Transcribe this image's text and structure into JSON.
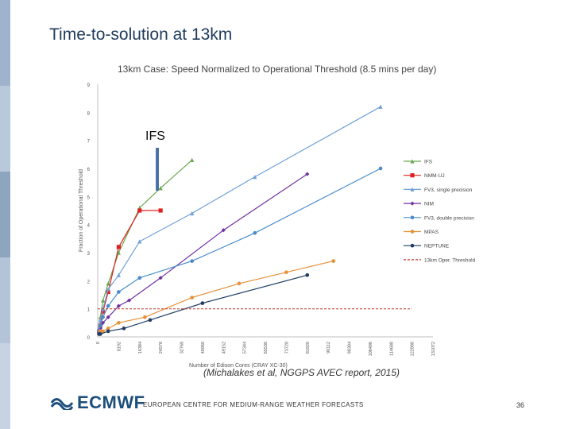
{
  "slide": {
    "title": "Time-to-solution at 13km",
    "annotation": "IFS",
    "citation": "(Michalakes et al, NGGPS AVEC report, 2015)",
    "footer_org": "EUROPEAN CENTRE FOR MEDIUM-RANGE WEATHER FORECASTS",
    "logo_text": "ECMWF",
    "page_number": "36"
  },
  "colors": {
    "title": "#1f3b5c",
    "logo": "#1d4f7c",
    "annotation_bar": "#4a73a8"
  },
  "chart_data": {
    "type": "line",
    "title": "13km Case: Speed Normalized to Operational Threshold (8.5 mins per day)",
    "xlabel": "Number of Edison Cores (CRAY XC-30)",
    "ylabel": "Fraction of Operational Threshold",
    "x_ticks": [
      "0",
      "8192",
      "16384",
      "24576",
      "32768",
      "40960",
      "49152",
      "57344",
      "65536",
      "73728",
      "81920",
      "90112",
      "98304",
      "106496",
      "114688",
      "122880",
      "131072"
    ],
    "y_ticks": [
      "0",
      "1",
      "2",
      "3",
      "4",
      "5",
      "6",
      "7",
      "8",
      "9"
    ],
    "xlim": [
      0,
      131072
    ],
    "ylim": [
      0,
      9
    ],
    "grid": false,
    "legend_position": "right",
    "series": [
      {
        "name": "IFS",
        "color": "#6aa84f",
        "marker": "triangle",
        "x": [
          512,
          1024,
          2048,
          4096,
          8192,
          16384,
          24576,
          36864
        ],
        "y": [
          0.3,
          0.7,
          1.3,
          1.9,
          3.0,
          4.6,
          5.3,
          6.3
        ]
      },
      {
        "name": "NMM-UJ",
        "color": "#e02020",
        "marker": "square",
        "x": [
          512,
          1024,
          2048,
          4096,
          8192,
          16384,
          24576
        ],
        "y": [
          0.2,
          0.4,
          0.9,
          1.6,
          3.2,
          4.5,
          4.5
        ]
      },
      {
        "name": "FV3, single precision",
        "color": "#6fa0d8",
        "marker": "triangle",
        "x": [
          512,
          1024,
          2048,
          4096,
          8192,
          16384,
          36864,
          61440,
          110592
        ],
        "y": [
          0.3,
          0.6,
          1.0,
          1.7,
          2.2,
          3.4,
          4.4,
          5.7,
          8.2
        ]
      },
      {
        "name": "NIM",
        "color": "#7030a0",
        "marker": "diamond",
        "x": [
          512,
          1024,
          2048,
          4096,
          8192,
          12288,
          24576,
          49152,
          81920
        ],
        "y": [
          0.1,
          0.3,
          0.5,
          0.7,
          1.1,
          1.3,
          2.1,
          3.8,
          5.8
        ]
      },
      {
        "name": "FV3, double precision",
        "color": "#4a8cc9",
        "marker": "circle",
        "x": [
          512,
          1024,
          2048,
          4096,
          8192,
          16384,
          36864,
          61440,
          110592
        ],
        "y": [
          0.2,
          0.4,
          0.7,
          1.1,
          1.6,
          2.1,
          2.7,
          3.7,
          6.0
        ]
      },
      {
        "name": "MPAS",
        "color": "#e69138",
        "marker": "circle",
        "x": [
          512,
          1024,
          2048,
          4096,
          8192,
          18432,
          36864,
          55296,
          73728,
          92160
        ],
        "y": [
          0.1,
          0.2,
          0.2,
          0.3,
          0.5,
          0.7,
          1.4,
          1.9,
          2.3,
          2.7
        ]
      },
      {
        "name": "NEPTUNE",
        "color": "#1f3d66",
        "marker": "circle",
        "x": [
          512,
          1024,
          4096,
          10240,
          20480,
          40960,
          81920
        ],
        "y": [
          0.1,
          0.1,
          0.2,
          0.3,
          0.6,
          1.2,
          2.2
        ]
      },
      {
        "name": "13km Oper. Threshold",
        "color": "#c0392b",
        "marker": "none",
        "dashed": true,
        "x": [
          0,
          122880
        ],
        "y": [
          1,
          1
        ]
      }
    ]
  }
}
